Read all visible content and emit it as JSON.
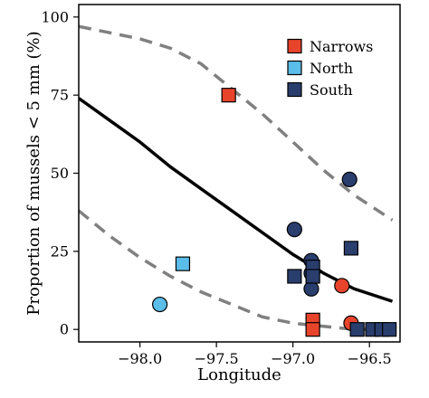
{
  "chart_data": {
    "type": "scatter",
    "title": "",
    "xlabel": "Longitude",
    "ylabel": "Proportion of mussels < 5 mm (%)",
    "xlim": [
      -98.4,
      -96.3
    ],
    "ylim": [
      -4,
      104
    ],
    "xticks": [
      -98.0,
      -97.5,
      -97.0,
      -96.5
    ],
    "xtick_labels": [
      "−98.0",
      "−97.5",
      "−97.0",
      "−96.5"
    ],
    "yticks": [
      0,
      25,
      50,
      75,
      100
    ],
    "ytick_labels": [
      "0",
      "25",
      "50",
      "75",
      "100"
    ],
    "grid": false,
    "legend": {
      "position": "top-right",
      "entries": [
        {
          "name": "Narrows",
          "color": "#e8442b"
        },
        {
          "name": "North",
          "color": "#5bbde9"
        },
        {
          "name": "South",
          "color": "#2a3e6e"
        }
      ]
    },
    "series": [
      {
        "name": "Narrows",
        "color": "#e8442b",
        "points": [
          {
            "x": -97.42,
            "y": 75,
            "shape": "square"
          },
          {
            "x": -96.87,
            "y": 3,
            "shape": "square"
          },
          {
            "x": -96.87,
            "y": 0,
            "shape": "square"
          },
          {
            "x": -96.68,
            "y": 14,
            "shape": "circle"
          },
          {
            "x": -96.62,
            "y": 2,
            "shape": "circle"
          }
        ]
      },
      {
        "name": "North",
        "color": "#5bbde9",
        "points": [
          {
            "x": -97.87,
            "y": 8,
            "shape": "circle"
          },
          {
            "x": -97.72,
            "y": 21,
            "shape": "square"
          }
        ]
      },
      {
        "name": "South",
        "color": "#2a3e6e",
        "points": [
          {
            "x": -96.99,
            "y": 32,
            "shape": "circle"
          },
          {
            "x": -96.88,
            "y": 22,
            "shape": "circle"
          },
          {
            "x": -96.88,
            "y": 18,
            "shape": "circle"
          },
          {
            "x": -96.88,
            "y": 13,
            "shape": "circle"
          },
          {
            "x": -96.99,
            "y": 17,
            "shape": "square"
          },
          {
            "x": -96.87,
            "y": 20,
            "shape": "square"
          },
          {
            "x": -96.87,
            "y": 17,
            "shape": "square"
          },
          {
            "x": -96.63,
            "y": 48,
            "shape": "circle"
          },
          {
            "x": -96.62,
            "y": 26,
            "shape": "square"
          },
          {
            "x": -96.58,
            "y": 0,
            "shape": "square"
          },
          {
            "x": -96.48,
            "y": 0,
            "shape": "square"
          },
          {
            "x": -96.42,
            "y": 0,
            "shape": "square"
          },
          {
            "x": -96.37,
            "y": 0,
            "shape": "square"
          }
        ]
      }
    ],
    "fit_line": {
      "x": [
        -98.4,
        -98.2,
        -98.0,
        -97.8,
        -97.6,
        -97.4,
        -97.2,
        -97.0,
        -96.8,
        -96.6,
        -96.35
      ],
      "y": [
        74,
        67,
        60,
        52,
        45,
        38,
        31,
        24,
        18,
        13,
        9
      ],
      "color": "#000000"
    },
    "ci_upper": {
      "x": [
        -98.4,
        -98.2,
        -98.0,
        -97.8,
        -97.6,
        -97.4,
        -97.2,
        -97.0,
        -96.8,
        -96.6,
        -96.35
      ],
      "y": [
        97,
        95,
        93,
        90,
        85,
        77,
        69,
        60,
        51,
        43,
        35
      ],
      "color": "#808080"
    },
    "ci_lower": {
      "x": [
        -98.4,
        -98.2,
        -98.0,
        -97.8,
        -97.6,
        -97.4,
        -97.2,
        -97.0,
        -96.8,
        -96.6,
        -96.35
      ],
      "y": [
        38,
        30,
        23,
        17,
        12,
        8,
        4,
        2,
        1,
        0,
        0
      ],
      "color": "#808080"
    }
  }
}
